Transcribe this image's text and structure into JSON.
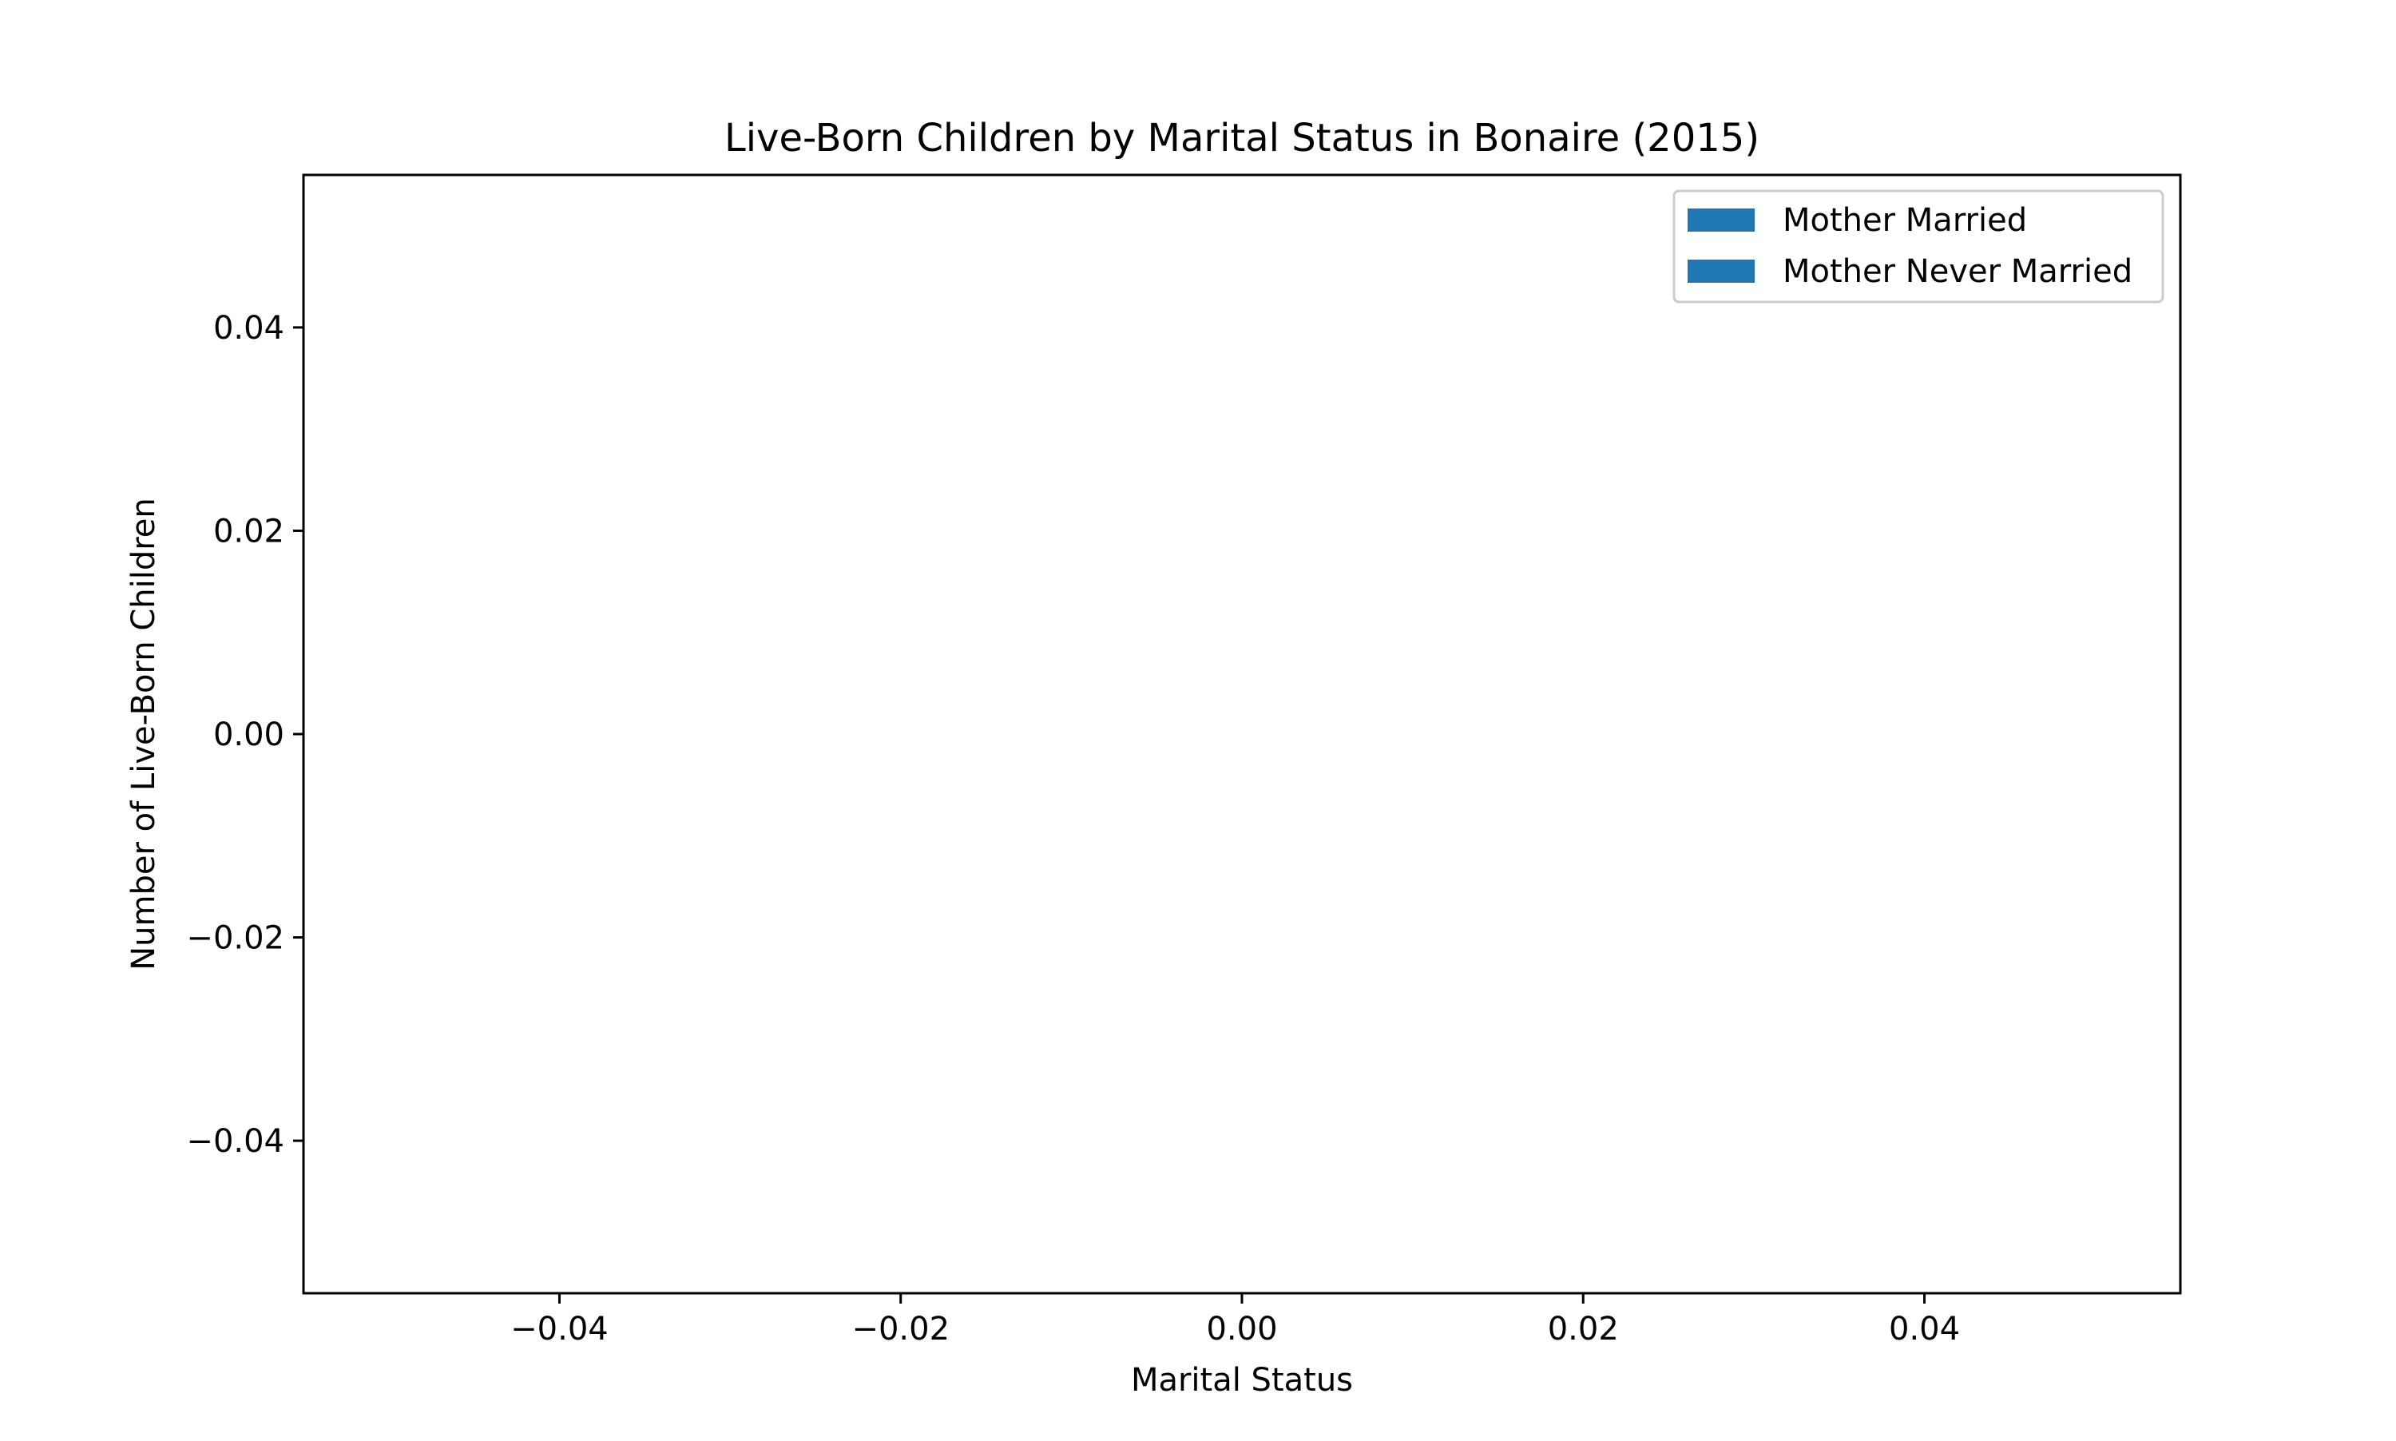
{
  "chart_data": {
    "type": "bar",
    "title": "Live-Born Children by Marital Status in Bonaire (2015)",
    "xlabel": "Marital Status",
    "ylabel": "Number of Live-Born Children",
    "xlim": [
      -0.055,
      0.055
    ],
    "ylim": [
      -0.055,
      0.055
    ],
    "xticks": [
      -0.04,
      -0.02,
      0.0,
      0.02,
      0.04
    ],
    "xtick_labels": [
      "−0.04",
      "−0.02",
      "0.00",
      "0.02",
      "0.04"
    ],
    "yticks": [
      0.04,
      0.02,
      0.0,
      -0.02,
      -0.04
    ],
    "ytick_labels": [
      "0.04",
      "0.02",
      "0.00",
      "−0.02",
      "−0.04"
    ],
    "grid": false,
    "legend_position": "top-right",
    "categories": [],
    "series": [
      {
        "name": "Mother Married",
        "color": "#1f77b4",
        "values": []
      },
      {
        "name": "Mother Never Married",
        "color": "#1f77b4",
        "values": []
      }
    ]
  }
}
